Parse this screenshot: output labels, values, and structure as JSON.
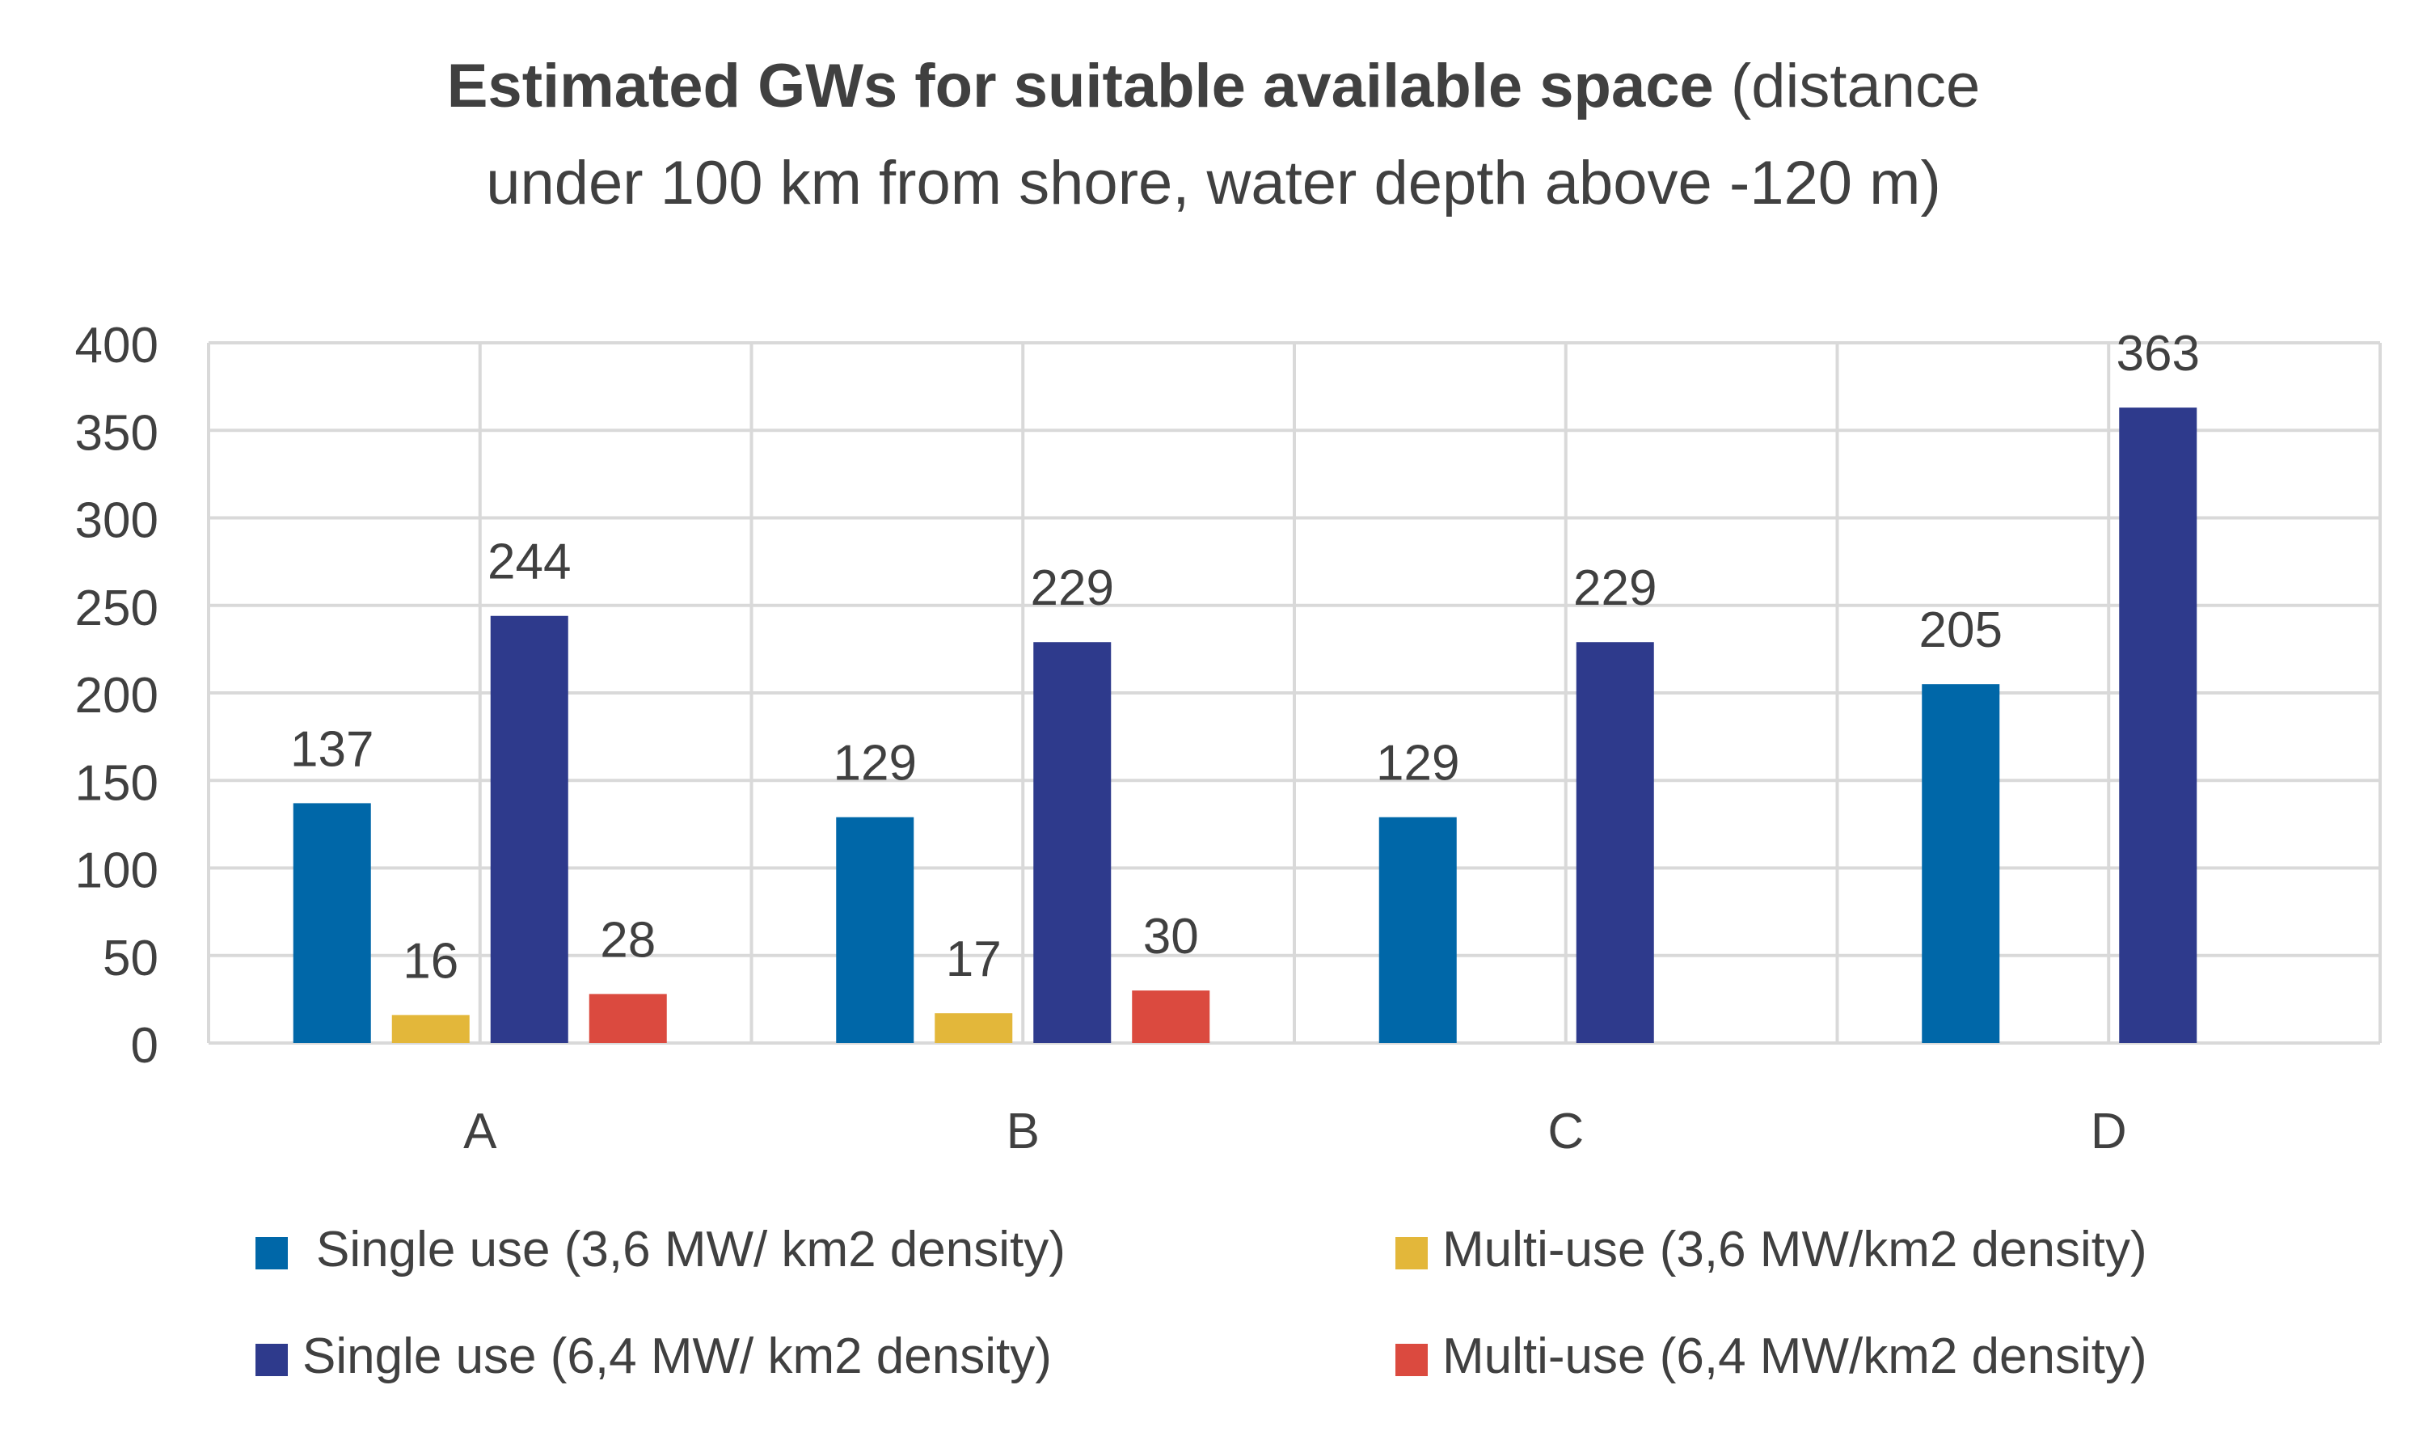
{
  "chart_data": {
    "type": "bar",
    "title_bold": "Estimated GWs for suitable available space",
    "title_rest_line1": " (distance",
    "title_line2": "under 100 km from shore, water depth above -120 m)",
    "xlabel": "",
    "ylabel": "",
    "ylim": [
      0,
      400
    ],
    "yticks": [
      0,
      50,
      100,
      150,
      200,
      250,
      300,
      350,
      400
    ],
    "categories": [
      "A",
      "B",
      "C",
      "D"
    ],
    "series": [
      {
        "name": "Single use (3,6 MW/ km2 density)",
        "color": "#0067a8",
        "values": [
          137,
          129,
          129,
          205
        ]
      },
      {
        "name": "Multi-use (3,6 MW/km2 density)",
        "color": "#e3b73a",
        "values": [
          16,
          17,
          null,
          null
        ]
      },
      {
        "name": "Single use (6,4 MW/ km2 density)",
        "color": "#2e3a8c",
        "values": [
          244,
          229,
          229,
          363
        ]
      },
      {
        "name": "Multi-use (6,4 MW/km2 density)",
        "color": "#db4a3f",
        "values": [
          28,
          30,
          null,
          null
        ]
      }
    ],
    "grid": true,
    "legend_position": "bottom"
  }
}
